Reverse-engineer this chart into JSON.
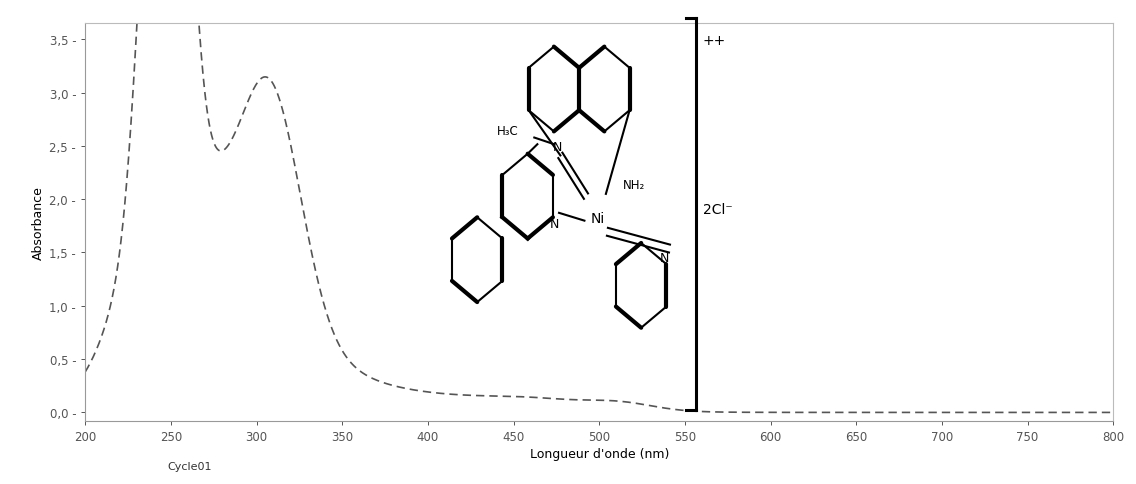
{
  "xlim": [
    200,
    800
  ],
  "ylim": [
    -0.08,
    3.65
  ],
  "xticks": [
    200,
    250,
    300,
    350,
    400,
    450,
    500,
    550,
    600,
    650,
    700,
    750,
    800
  ],
  "yticks": [
    0.0,
    0.5,
    1.0,
    1.5,
    2.0,
    2.5,
    3.0,
    3.5
  ],
  "ytick_labels": [
    "0,0 -",
    "0,5 -",
    "1,0 -",
    "1,5 -",
    "2,0 -",
    "2,5 -",
    "3,0 -",
    "3,5 -"
  ],
  "xlabel": "Longueur d'onde (nm)",
  "ylabel": "Absorbance",
  "cycle_label": "Cycle01",
  "line_color": "#555555",
  "background_color": "#ffffff",
  "fig_width": 11.36,
  "fig_height": 4.85,
  "dpi": 100
}
